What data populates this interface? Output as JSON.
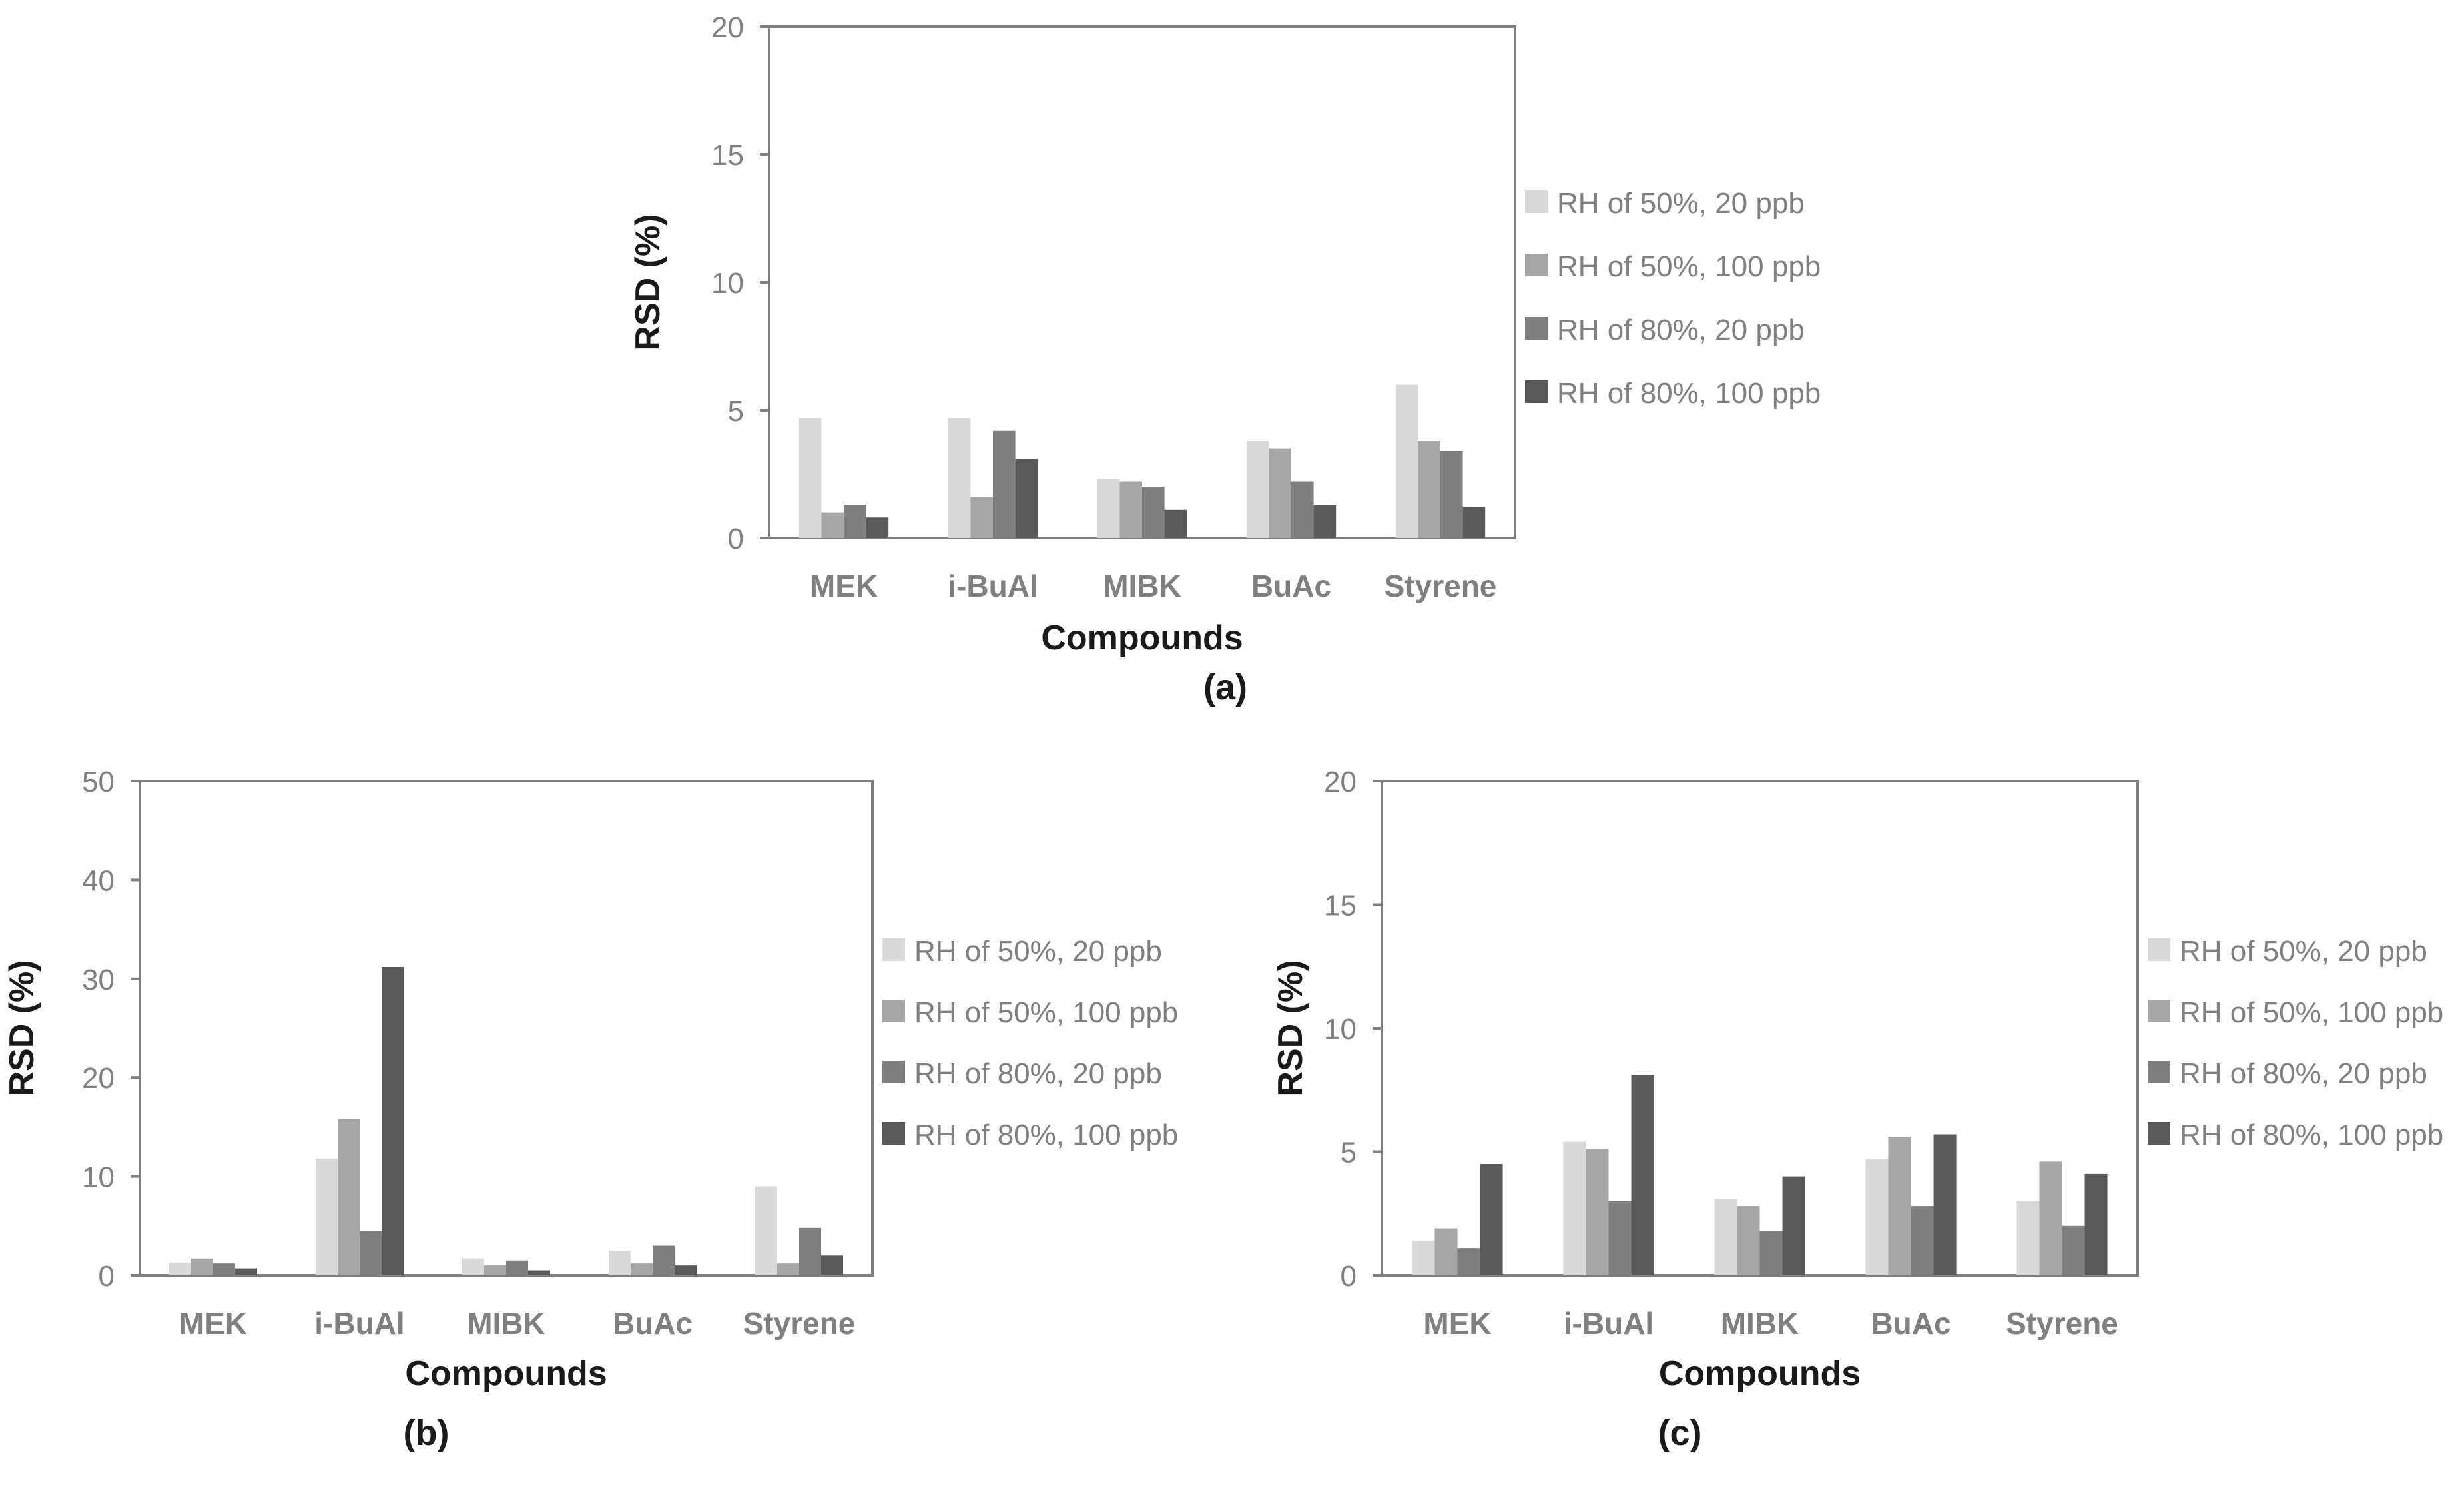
{
  "panels": [
    {
      "id": "a",
      "panel_label": "(a)",
      "chart_data": {
        "type": "bar",
        "title": "",
        "xlabel": "Compounds",
        "ylabel": "RSD (%)",
        "ylim": [
          0,
          20
        ],
        "yticks": [
          0,
          5,
          10,
          15,
          20
        ],
        "categories": [
          "MEK",
          "i-BuAl",
          "MIBK",
          "BuAc",
          "Styrene"
        ],
        "series": [
          {
            "name": "RH of 50%, 20 ppb",
            "color": "#d9d9d9",
            "values": [
              4.7,
              4.7,
              2.3,
              3.8,
              6.0
            ]
          },
          {
            "name": "RH of 50%, 100 ppb",
            "color": "#a6a6a6",
            "values": [
              1.0,
              1.6,
              2.2,
              3.5,
              3.8
            ]
          },
          {
            "name": "RH of 80%, 20 ppb",
            "color": "#7f7f7f",
            "values": [
              1.3,
              4.2,
              2.0,
              2.2,
              3.4
            ]
          },
          {
            "name": "RH of 80%, 100 ppb",
            "color": "#595959",
            "values": [
              0.8,
              3.1,
              1.1,
              1.3,
              1.2
            ]
          }
        ],
        "legend_position": "right",
        "grid": false
      }
    },
    {
      "id": "b",
      "panel_label": "(b)",
      "chart_data": {
        "type": "bar",
        "title": "",
        "xlabel": "Compounds",
        "ylabel": "RSD (%)",
        "ylim": [
          0,
          50
        ],
        "yticks": [
          0,
          10,
          20,
          30,
          40,
          50
        ],
        "categories": [
          "MEK",
          "i-BuAl",
          "MIBK",
          "BuAc",
          "Styrene"
        ],
        "series": [
          {
            "name": "RH of 50%, 20 ppb",
            "color": "#d9d9d9",
            "values": [
              1.3,
              11.8,
              1.7,
              2.5,
              9.0
            ]
          },
          {
            "name": "RH of 50%, 100 ppb",
            "color": "#a6a6a6",
            "values": [
              1.7,
              15.8,
              1.0,
              1.2,
              1.2
            ]
          },
          {
            "name": "RH of 80%, 20 ppb",
            "color": "#7f7f7f",
            "values": [
              1.2,
              4.5,
              1.5,
              3.0,
              4.8
            ]
          },
          {
            "name": "RH of 80%, 100 ppb",
            "color": "#595959",
            "values": [
              0.7,
              31.2,
              0.5,
              1.0,
              2.0
            ]
          }
        ],
        "legend_position": "right",
        "grid": false
      }
    },
    {
      "id": "c",
      "panel_label": "(c)",
      "chart_data": {
        "type": "bar",
        "title": "",
        "xlabel": "Compounds",
        "ylabel": "RSD (%)",
        "ylim": [
          0,
          20
        ],
        "yticks": [
          0,
          5,
          10,
          15,
          20
        ],
        "categories": [
          "MEK",
          "i-BuAl",
          "MIBK",
          "BuAc",
          "Styrene"
        ],
        "series": [
          {
            "name": "RH of 50%, 20 ppb",
            "color": "#d9d9d9",
            "values": [
              1.4,
              5.4,
              3.1,
              4.7,
              3.0
            ]
          },
          {
            "name": "RH of 50%, 100 ppb",
            "color": "#a6a6a6",
            "values": [
              1.9,
              5.1,
              2.8,
              5.6,
              4.6
            ]
          },
          {
            "name": "RH of 80%, 20 ppb",
            "color": "#7f7f7f",
            "values": [
              1.1,
              3.0,
              1.8,
              2.8,
              2.0
            ]
          },
          {
            "name": "RH of 80%, 100 ppb",
            "color": "#595959",
            "values": [
              4.5,
              8.1,
              4.0,
              5.7,
              4.1
            ]
          }
        ],
        "legend_position": "right",
        "grid": false
      }
    }
  ],
  "style": {
    "axis_color": "#7f7f7f",
    "tick_text_color": "#808080",
    "category_text_color": "#808080",
    "title_text_color": "#1a1a1a",
    "legend_text_color": "#808080",
    "background": "#ffffff"
  }
}
